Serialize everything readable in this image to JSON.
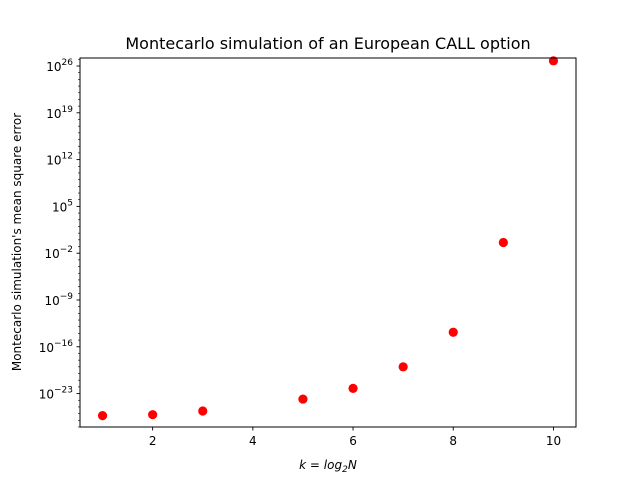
{
  "chart_data": {
    "type": "scatter",
    "title": "Montecarlo simulation of an European CALL option",
    "xlabel_prefix": "k = log",
    "xlabel_sub": "2",
    "xlabel_suffix": "N",
    "ylabel": "Montecarlo simulation's mean square error",
    "yscale": "log",
    "xlim": [
      0.55,
      10.45
    ],
    "ylim_exp": [
      -28.0,
      27.2
    ],
    "xticks": [
      2,
      4,
      6,
      8,
      10
    ],
    "xtick_labels": [
      "2",
      "4",
      "6",
      "8",
      "10"
    ],
    "yticks_exp": [
      -23,
      -16,
      -9,
      -2,
      5,
      12,
      19,
      26
    ],
    "ytick_base": "10",
    "ytick_exponents": [
      "−23",
      "−16",
      "−9",
      "−2",
      "5",
      "12",
      "19",
      "26"
    ],
    "grid": false,
    "series": [
      {
        "color": "#ff0000",
        "points": [
          {
            "x": 1,
            "y": 5e-27
          },
          {
            "x": 2,
            "y": 7e-27
          },
          {
            "x": 3,
            "y": 2.5e-26
          },
          {
            "x": 5,
            "y": 1.5e-24
          },
          {
            "x": 6,
            "y": 6e-23
          },
          {
            "x": 7,
            "y": 1e-19
          },
          {
            "x": 8,
            "y": 1.5e-14
          },
          {
            "x": 9,
            "y": 0.4
          },
          {
            "x": 10,
            "y": 6e+26
          }
        ]
      }
    ]
  }
}
